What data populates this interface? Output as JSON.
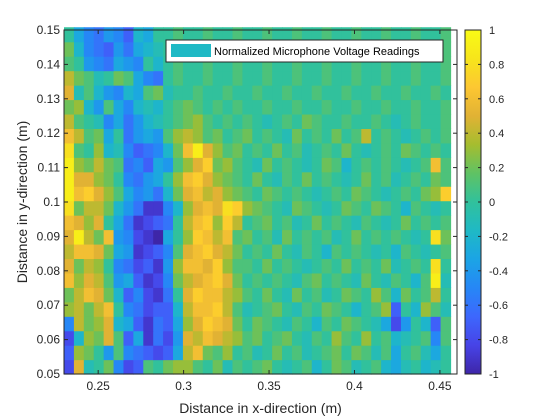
{
  "chart_data": {
    "type": "heatmap",
    "title": "",
    "xlabel": "Distance in x-direction (m)",
    "ylabel": "Distance in y-direction (m)",
    "xlim": [
      0.23,
      0.46
    ],
    "ylim": [
      0.05,
      0.15
    ],
    "x_ticks": [
      0.25,
      0.3,
      0.35,
      0.4,
      0.45
    ],
    "x_tick_labels": [
      "0.25",
      "0.3",
      "0.35",
      "0.4",
      "0.45"
    ],
    "y_ticks": [
      0.05,
      0.06,
      0.07,
      0.08,
      0.09,
      0.1,
      0.11,
      0.12,
      0.13,
      0.14,
      0.15
    ],
    "y_tick_labels": [
      "0.05",
      "0.06",
      "0.07",
      "0.08",
      "0.09",
      "0.1",
      "0.11",
      "0.12",
      "0.13",
      "0.14",
      "0.15"
    ],
    "color_limits": [
      -1,
      1
    ],
    "colorbar_ticks": [
      -1,
      -0.8,
      -0.6,
      -0.4,
      -0.2,
      0,
      0.2,
      0.4,
      0.6,
      0.8,
      1
    ],
    "colorbar_tick_labels": [
      "-1",
      "-0.8",
      "-0.6",
      "-0.4",
      "-0.2",
      "0",
      "0.2",
      "0.4",
      "0.6",
      "0.8",
      "1"
    ],
    "colormap": "parula",
    "colormap_stops": [
      "#3e26a8",
      "#4743e7",
      "#3d67fd",
      "#2687f6",
      "#1ba4e5",
      "#1fb9c5",
      "#31c19c",
      "#5fc264",
      "#a5bd2f",
      "#e1b234",
      "#fdc732",
      "#f7e51b",
      "#f9fb15"
    ],
    "legend": {
      "label": "Normalized Microphone Voltage Readings",
      "color": "#1fb9c5",
      "position": "top-right"
    },
    "grid": false,
    "x_start": 0.23,
    "x_step": 0.0058,
    "y_start": 0.05,
    "y_step": 0.0042,
    "rows_from_bottom": [
      [
        -0.8,
        0.5,
        -0.1,
        0.0,
        0.2,
        -0.5,
        -0.8,
        -0.7,
        0.1,
        0.0,
        0.2,
        0.3,
        0.3,
        0.1,
        0.0,
        0.2,
        -0.1,
        0.1,
        0.0,
        0.1,
        0.2,
        0.0,
        -0.1,
        0.0,
        0.1,
        -0.2,
        0.0,
        0.2,
        0.1,
        -0.1,
        0.0,
        0.1,
        -0.2,
        -0.3,
        -0.1,
        0.0,
        -0.2,
        -0.1,
        0.0
      ],
      [
        -0.7,
        0.3,
        0.2,
        0.0,
        -0.4,
        0.1,
        -0.5,
        -0.6,
        -0.7,
        -0.8,
        -0.7,
        -0.3,
        0.4,
        0.6,
        0.2,
        0.1,
        0.3,
        0.0,
        0.1,
        -0.1,
        0.0,
        0.2,
        0.0,
        0.1,
        -0.1,
        0.0,
        0.1,
        0.2,
        0.0,
        0.2,
        0.1,
        -0.1,
        0.1,
        -0.3,
        0.0,
        0.1,
        -0.1,
        -0.3,
        0.0
      ],
      [
        -0.8,
        -0.2,
        0.3,
        0.2,
        0.5,
        0.1,
        -0.7,
        -0.3,
        -0.9,
        -0.6,
        -0.8,
        -0.4,
        0.5,
        0.4,
        0.6,
        0.5,
        0.4,
        0.3,
        0.1,
        0.2,
        0.0,
        0.1,
        0.2,
        0.0,
        -0.1,
        0.1,
        0.0,
        0.3,
        0.1,
        0.0,
        0.3,
        0.0,
        0.1,
        -0.2,
        -0.1,
        0.0,
        0.1,
        -0.5,
        0.1
      ],
      [
        -0.5,
        0.4,
        0.2,
        0.3,
        0.5,
        -0.2,
        -0.3,
        -0.7,
        -0.9,
        -0.6,
        -0.7,
        -0.3,
        0.3,
        0.5,
        0.7,
        0.6,
        0.5,
        0.2,
        0.0,
        0.2,
        0.1,
        0.0,
        -0.1,
        0.1,
        0.0,
        -0.2,
        0.1,
        0.0,
        0.2,
        0.1,
        0.0,
        -0.1,
        -0.3,
        -0.8,
        -0.4,
        0.0,
        -0.2,
        -0.7,
        0.1
      ],
      [
        0.3,
        0.4,
        0.2,
        0.4,
        0.6,
        0.0,
        -0.5,
        -0.6,
        -0.8,
        -0.7,
        -0.7,
        -0.2,
        0.4,
        0.6,
        0.6,
        0.7,
        0.4,
        0.1,
        -0.1,
        0.0,
        0.1,
        0.2,
        0.0,
        -0.1,
        0.1,
        0.0,
        0.2,
        0.1,
        0.0,
        -0.2,
        0.0,
        0.1,
        0.3,
        -0.7,
        0.0,
        -0.2,
        0.3,
        0.1,
        -0.1
      ],
      [
        0.2,
        0.4,
        0.6,
        0.5,
        0.2,
        -0.2,
        -0.7,
        -0.5,
        -0.8,
        -0.9,
        -0.6,
        0.0,
        0.5,
        0.7,
        0.6,
        0.6,
        0.4,
        0.3,
        0.1,
        0.0,
        0.2,
        0.0,
        -0.1,
        0.2,
        0.0,
        0.1,
        -0.1,
        0.0,
        0.2,
        0.1,
        0.0,
        0.3,
        0.1,
        -0.2,
        0.2,
        0.0,
        0.1,
        0.4,
        0.0
      ],
      [
        0.6,
        0.3,
        0.5,
        0.4,
        0.1,
        -0.4,
        -0.3,
        -0.7,
        -0.9,
        -0.8,
        -0.5,
        0.2,
        0.4,
        0.5,
        0.6,
        0.7,
        0.5,
        0.2,
        0.0,
        0.1,
        0.0,
        0.1,
        0.0,
        -0.1,
        0.1,
        0.2,
        0.0,
        0.1,
        0.0,
        -0.1,
        0.2,
        0.0,
        -0.1,
        0.1,
        0.0,
        -0.2,
        0.1,
        0.9,
        -0.1
      ],
      [
        0.5,
        0.2,
        0.4,
        0.3,
        0.0,
        -0.5,
        -0.6,
        -0.8,
        -0.7,
        -0.9,
        -0.4,
        0.3,
        0.6,
        0.6,
        0.5,
        0.7,
        0.3,
        0.1,
        0.1,
        0.0,
        0.2,
        0.0,
        0.1,
        0.0,
        -0.1,
        0.0,
        0.1,
        0.0,
        0.2,
        0.0,
        0.1,
        0.0,
        0.2,
        -0.1,
        0.0,
        0.1,
        0.0,
        0.8,
        0.0
      ],
      [
        0.4,
        0.6,
        0.6,
        0.5,
        0.2,
        -0.3,
        -0.4,
        -0.9,
        -0.8,
        -0.7,
        -0.5,
        0.1,
        0.5,
        0.6,
        0.7,
        0.5,
        0.4,
        0.2,
        0.0,
        0.1,
        0.0,
        0.2,
        0.0,
        -0.1,
        0.1,
        0.0,
        -0.2,
        0.1,
        0.0,
        0.1,
        0.0,
        -0.1,
        0.0,
        -0.2,
        0.1,
        0.0,
        -0.1,
        0.0,
        0.1
      ],
      [
        0.5,
        0.9,
        0.4,
        0.2,
        0.6,
        -0.4,
        -0.5,
        -0.8,
        -0.9,
        -1.0,
        -0.3,
        0.0,
        0.3,
        0.7,
        0.6,
        0.4,
        0.6,
        0.1,
        0.2,
        0.0,
        0.1,
        -0.1,
        0.2,
        0.0,
        0.1,
        0.0,
        0.1,
        -0.1,
        0.0,
        0.2,
        0.0,
        0.1,
        0.0,
        0.1,
        0.0,
        -0.1,
        0.0,
        0.8,
        0.2
      ],
      [
        0.6,
        0.5,
        0.3,
        0.5,
        0.0,
        -0.3,
        -0.6,
        -0.9,
        -0.8,
        -0.7,
        -0.6,
        0.0,
        0.4,
        0.6,
        0.7,
        0.3,
        0.7,
        0.4,
        0.0,
        0.1,
        0.2,
        0.0,
        0.1,
        -0.1,
        0.0,
        0.2,
        0.0,
        0.1,
        0.0,
        -0.1,
        0.1,
        0.0,
        -0.1,
        0.0,
        0.2,
        0.0,
        0.1,
        0.0,
        0.1
      ],
      [
        0.8,
        0.2,
        0.4,
        0.4,
        0.2,
        -0.2,
        -0.4,
        -0.6,
        -0.9,
        -0.9,
        -0.5,
        -0.2,
        0.3,
        0.5,
        0.6,
        0.5,
        0.8,
        0.7,
        0.3,
        0.2,
        0.1,
        0.0,
        -0.1,
        0.2,
        0.1,
        0.0,
        -0.1,
        0.0,
        0.2,
        0.1,
        0.0,
        0.2,
        0.1,
        0.0,
        -0.2,
        0.1,
        0.0,
        -0.1,
        0.0
      ],
      [
        0.9,
        0.6,
        0.7,
        0.5,
        0.3,
        0.1,
        -0.3,
        -0.5,
        -0.4,
        -0.6,
        -0.2,
        0.2,
        0.5,
        0.6,
        0.4,
        0.5,
        0.3,
        0.2,
        0.1,
        0.0,
        0.2,
        0.1,
        0.0,
        0.1,
        0.0,
        -0.1,
        0.0,
        0.1,
        0.0,
        0.2,
        0.1,
        0.0,
        -0.1,
        0.0,
        0.1,
        0.0,
        0.2,
        0.3,
        0.7
      ],
      [
        0.9,
        0.5,
        0.5,
        0.3,
        0.2,
        0.0,
        -0.5,
        -0.6,
        -0.4,
        -0.3,
        0.0,
        0.3,
        0.6,
        0.7,
        0.5,
        0.3,
        0.2,
        0.1,
        0.0,
        0.2,
        0.0,
        -0.1,
        0.1,
        0.0,
        0.2,
        0.0,
        0.1,
        0.0,
        -0.1,
        0.0,
        0.2,
        0.0,
        0.1,
        -0.1,
        0.0,
        0.1,
        0.0,
        0.2,
        0.1
      ],
      [
        0.9,
        0.3,
        0.2,
        0.4,
        0.2,
        0.1,
        -0.6,
        -0.5,
        -0.7,
        -0.3,
        -0.4,
        0.1,
        0.3,
        0.5,
        0.7,
        0.2,
        0.3,
        0.1,
        0.0,
        -0.1,
        0.2,
        0.0,
        0.1,
        0.0,
        -0.1,
        0.0,
        0.2,
        0.1,
        -0.2,
        0.0,
        0.1,
        0.0,
        0.1,
        0.0,
        -0.1,
        0.0,
        0.1,
        0.6,
        0.1
      ],
      [
        0.8,
        0.1,
        0.0,
        0.3,
        -0.2,
        -0.1,
        -0.5,
        -0.7,
        -0.6,
        -0.5,
        -0.2,
        0.2,
        0.6,
        0.9,
        0.5,
        0.3,
        0.1,
        0.2,
        0.0,
        0.1,
        0.0,
        0.2,
        0.0,
        0.1,
        -0.1,
        0.0,
        0.1,
        0.0,
        0.2,
        0.0,
        -0.1,
        0.0,
        0.1,
        0.0,
        0.2,
        0.1,
        0.0,
        0.1,
        0.0
      ],
      [
        0.6,
        0.4,
        0.1,
        0.2,
        -0.3,
        0.0,
        -0.6,
        -0.4,
        -0.3,
        -0.4,
        0.1,
        0.3,
        0.4,
        0.3,
        0.1,
        0.2,
        0.0,
        0.1,
        0.2,
        0.0,
        0.1,
        0.0,
        -0.1,
        0.2,
        0.0,
        0.1,
        0.0,
        0.2,
        0.0,
        0.1,
        0.4,
        0.0,
        0.1,
        0.0,
        -0.1,
        0.0,
        0.1,
        0.0,
        0.1
      ],
      [
        0.4,
        0.1,
        0.0,
        -0.1,
        -0.5,
        -0.3,
        -0.6,
        -0.4,
        -0.2,
        -0.1,
        0.0,
        0.1,
        0.2,
        0.3,
        0.1,
        0.0,
        0.1,
        0.0,
        0.1,
        0.0,
        -0.1,
        0.0,
        0.1,
        0.0,
        0.2,
        0.1,
        0.0,
        0.0,
        0.1,
        0.0,
        0.0,
        0.1,
        0.0,
        -0.1,
        0.0,
        0.1,
        0.0,
        0.0,
        0.1
      ],
      [
        0.2,
        0.3,
        -0.2,
        -0.4,
        0.1,
        -0.3,
        -0.5,
        -0.2,
        -0.1,
        -0.2,
        0.0,
        0.1,
        0.2,
        0.1,
        0.0,
        0.1,
        0.0,
        0.1,
        0.0,
        0.0,
        0.1,
        0.0,
        0.0,
        0.1,
        0.0,
        0.0,
        0.1,
        0.0,
        0.0,
        0.1,
        0.0,
        0.0,
        0.1,
        0.0,
        0.0,
        0.1,
        0.0,
        0.0,
        0.1
      ],
      [
        0.5,
        -0.1,
        0.1,
        -0.2,
        -0.4,
        -0.5,
        -0.2,
        -0.3,
        0.1,
        0.2,
        -0.1,
        0.0,
        0.0,
        0.1,
        0.0,
        0.0,
        0.1,
        0.0,
        0.0,
        0.1,
        0.0,
        0.0,
        0.1,
        0.0,
        0.0,
        0.1,
        0.0,
        0.0,
        0.1,
        0.0,
        0.0,
        0.1,
        0.0,
        0.0,
        0.1,
        0.0,
        0.0,
        0.1,
        0.0
      ],
      [
        0.4,
        0.2,
        0.1,
        -0.1,
        0.0,
        0.2,
        0.1,
        -0.3,
        -0.5,
        -0.6,
        0.0,
        0.1,
        0.0,
        0.0,
        0.1,
        0.0,
        0.0,
        0.1,
        0.0,
        0.0,
        0.1,
        0.0,
        0.0,
        0.1,
        0.0,
        0.0,
        0.1,
        0.0,
        0.0,
        0.1,
        0.0,
        0.0,
        0.1,
        0.0,
        0.0,
        0.1,
        0.0,
        0.0,
        0.1
      ],
      [
        0.1,
        0.0,
        -0.4,
        -0.5,
        -0.6,
        -0.3,
        -0.4,
        -0.5,
        0.0,
        -0.2,
        0.0,
        0.1,
        0.0,
        0.0,
        0.1,
        0.0,
        0.0,
        0.1,
        0.0,
        0.0,
        0.1,
        0.0,
        0.0,
        0.1,
        0.0,
        0.0,
        0.1,
        0.0,
        0.0,
        0.1,
        0.0,
        0.0,
        0.1,
        0.0,
        0.0,
        0.1,
        0.0,
        0.0,
        0.1
      ],
      [
        0.2,
        -0.2,
        -0.5,
        -0.6,
        -0.7,
        -0.4,
        -0.6,
        -0.3,
        -0.2,
        -0.1,
        0.0,
        0.1,
        0.0,
        0.0,
        0.1,
        0.0,
        0.0,
        0.1,
        0.0,
        0.0,
        0.1,
        0.0,
        0.0,
        0.1,
        0.0,
        0.0,
        0.1,
        0.0,
        0.0,
        0.1,
        0.0,
        0.0,
        0.1,
        0.0,
        0.0,
        0.1,
        0.0,
        0.0,
        0.1
      ],
      [
        0.0,
        -0.3,
        -0.5,
        -0.6,
        -0.4,
        -0.5,
        -0.7,
        -0.2,
        -0.3,
        0.0,
        0.0,
        0.1,
        0.0,
        0.0,
        0.1,
        0.0,
        0.0,
        0.1,
        0.0,
        0.0,
        0.1,
        0.0,
        0.0,
        0.1,
        0.0,
        0.0,
        0.1,
        0.0,
        0.0,
        0.1,
        0.0,
        0.0,
        0.1,
        0.0,
        0.0,
        0.1,
        0.0,
        0.0,
        0.1
      ]
    ]
  }
}
